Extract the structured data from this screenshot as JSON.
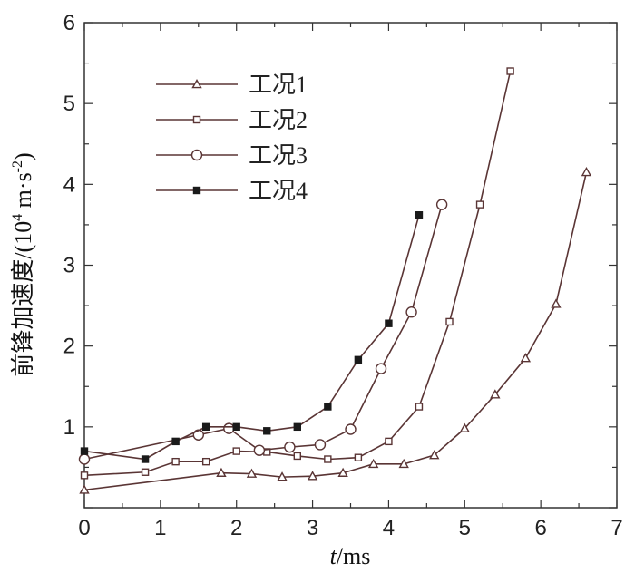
{
  "chart_data": {
    "type": "line",
    "xlabel_italic": "t",
    "xlabel_rest": "/ms",
    "ylabel_main": "前锋加速度/(10",
    "ylabel_sup1": "4",
    "ylabel_mid": " m·s",
    "ylabel_sup2": "-2",
    "ylabel_end": ")",
    "xlim": [
      0,
      7
    ],
    "ylim": [
      0,
      6
    ],
    "xticks": [
      "0",
      "1",
      "2",
      "3",
      "4",
      "5",
      "6",
      "7"
    ],
    "yticks": [
      "1",
      "2",
      "3",
      "4",
      "5",
      "6"
    ],
    "legend_position": "top-left",
    "line_color": "#5a3535",
    "series": [
      {
        "name": "工况1",
        "marker": "triangle",
        "x": [
          0.0,
          1.8,
          2.2,
          2.6,
          3.0,
          3.4,
          3.8,
          4.2,
          4.6,
          5.0,
          5.4,
          5.8,
          6.2,
          6.6
        ],
        "y": [
          0.22,
          0.43,
          0.42,
          0.38,
          0.39,
          0.43,
          0.54,
          0.54,
          0.65,
          0.98,
          1.4,
          1.85,
          2.52,
          4.15
        ]
      },
      {
        "name": "工况2",
        "marker": "square-open",
        "x": [
          0.0,
          0.8,
          1.2,
          1.6,
          2.0,
          2.4,
          2.8,
          3.2,
          3.6,
          4.0,
          4.4,
          4.8,
          5.2,
          5.6
        ],
        "y": [
          0.4,
          0.44,
          0.57,
          0.57,
          0.7,
          0.69,
          0.64,
          0.6,
          0.62,
          0.82,
          1.25,
          2.3,
          3.75,
          5.4
        ]
      },
      {
        "name": "工况3",
        "marker": "circle",
        "x": [
          0.0,
          1.5,
          1.9,
          2.3,
          2.7,
          3.1,
          3.5,
          3.9,
          4.3,
          4.7
        ],
        "y": [
          0.6,
          0.9,
          0.98,
          0.71,
          0.75,
          0.78,
          0.97,
          1.72,
          2.42,
          3.75
        ]
      },
      {
        "name": "工况4",
        "marker": "square-filled",
        "x": [
          0.0,
          0.8,
          1.2,
          1.6,
          2.0,
          2.4,
          2.8,
          3.2,
          3.6,
          4.0,
          4.4
        ],
        "y": [
          0.7,
          0.6,
          0.82,
          1.0,
          1.0,
          0.95,
          1.0,
          1.25,
          1.83,
          2.28,
          3.62
        ]
      }
    ]
  }
}
